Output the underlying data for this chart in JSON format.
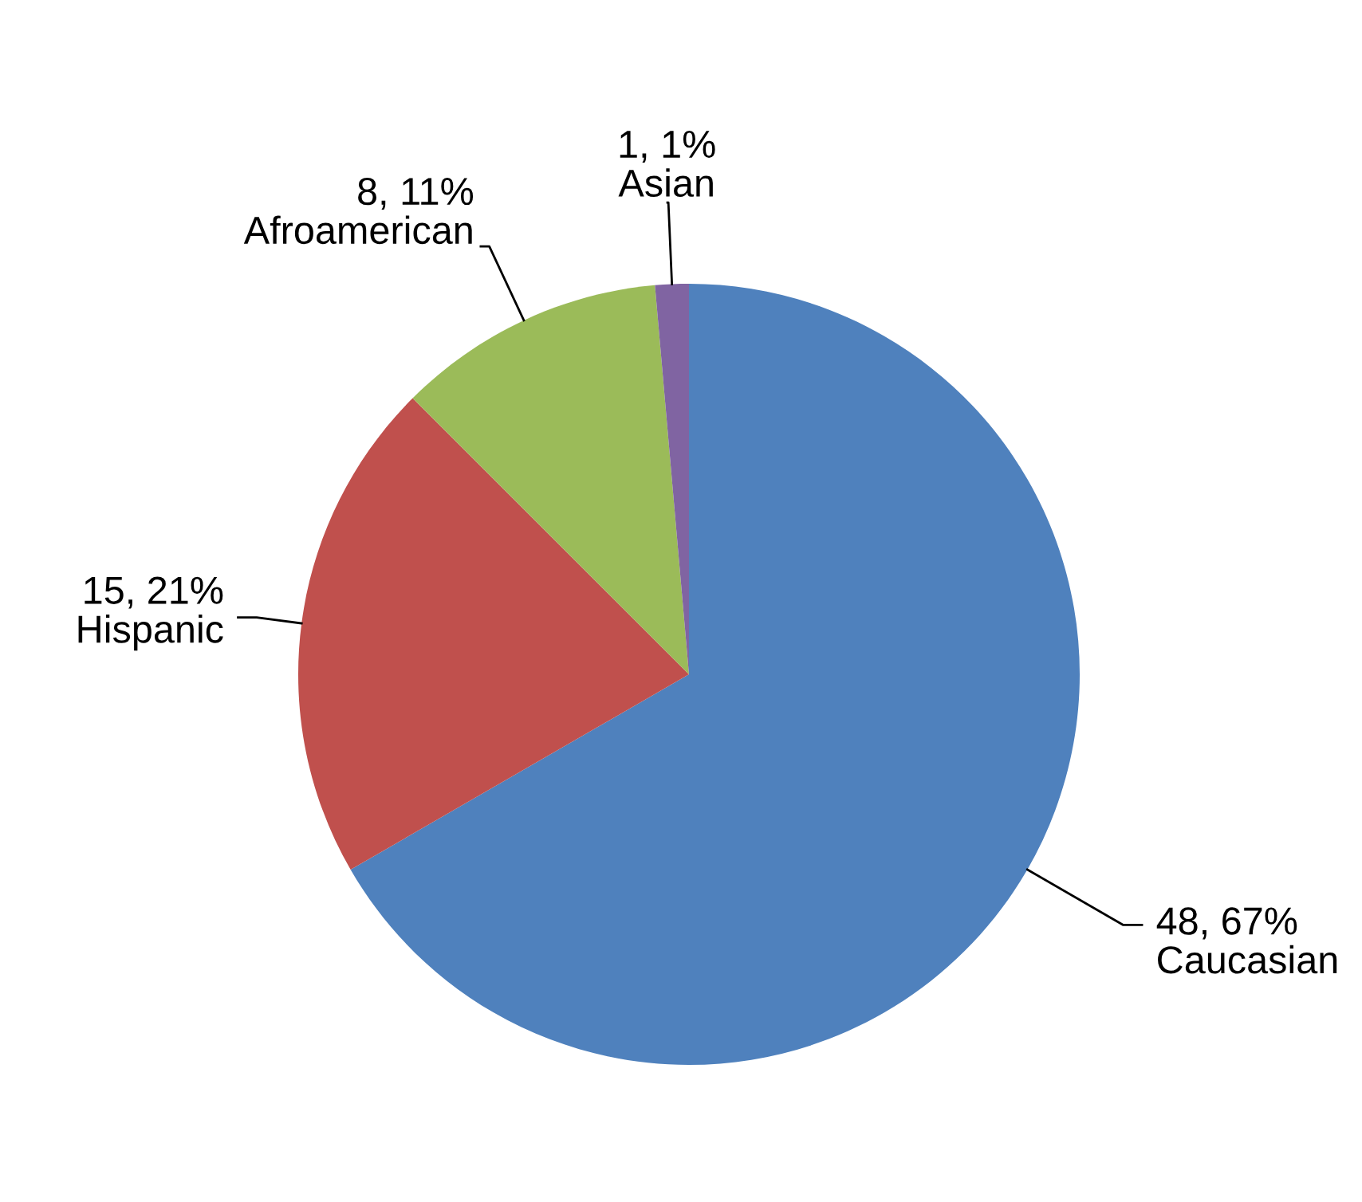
{
  "chart_data": {
    "type": "pie",
    "categories": [
      "Caucasian",
      "Hispanic",
      "Afroamerican",
      "Asian"
    ],
    "values": [
      48,
      15,
      8,
      1
    ],
    "value_labels": [
      "48, 67%",
      "15, 21%",
      "8, 11%",
      "1, 1%"
    ],
    "colors": [
      "#4f81bd",
      "#c0504d",
      "#9bbb59",
      "#8064a2"
    ],
    "legend": false
  }
}
